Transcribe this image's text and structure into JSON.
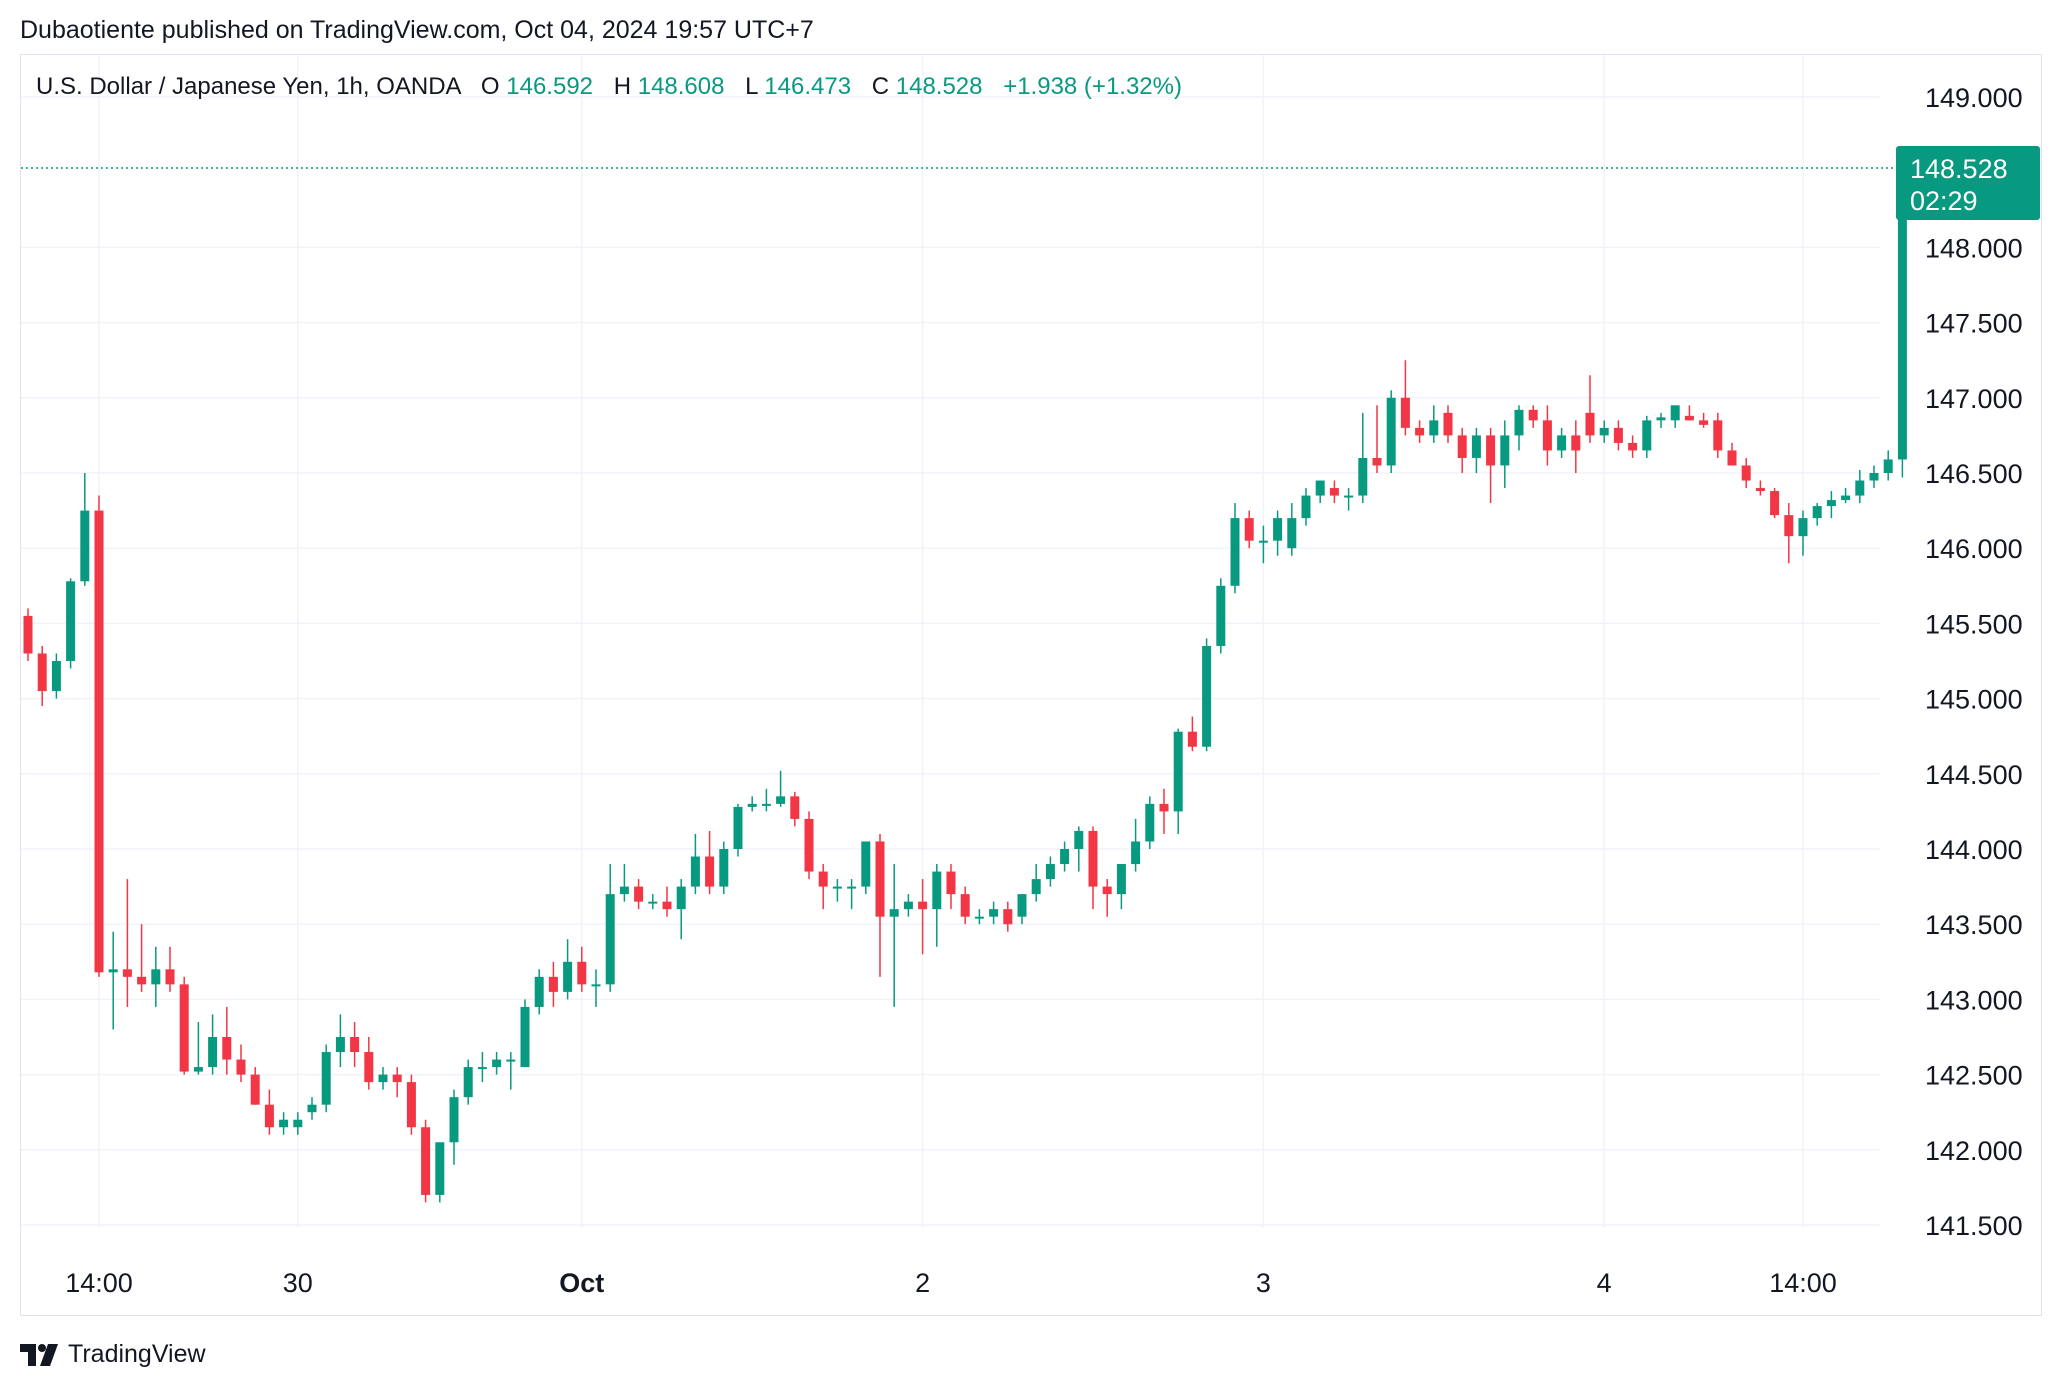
{
  "header": {
    "text": "Dubaotiente published on TradingView.com, Oct 04, 2024 19:57 UTC+7"
  },
  "footer": {
    "brand": "TradingView",
    "logo_icon": "tradingview-logo-icon"
  },
  "colors": {
    "up": "#089981",
    "down": "#f23645",
    "grid": "#f0f3fa",
    "text": "#131722"
  },
  "legend": {
    "symbol": "U.S. Dollar / Japanese Yen, 1h, OANDA",
    "o_label": "O",
    "o_value": "146.592",
    "h_label": "H",
    "h_value": "148.608",
    "l_label": "L",
    "l_value": "146.473",
    "c_label": "C",
    "c_value": "148.528",
    "change": "+1.938 (+1.32%)"
  },
  "last_price": {
    "value": "148.528",
    "countdown": "02:29"
  },
  "chart_data": {
    "type": "candlestick",
    "ylim": [
      141.5,
      149.0
    ],
    "y_ticks": [
      "149.000",
      "148.000",
      "147.500",
      "147.000",
      "146.500",
      "146.000",
      "145.500",
      "145.000",
      "144.500",
      "144.000",
      "143.500",
      "143.000",
      "142.500",
      "142.000",
      "141.500"
    ],
    "x_ticks": [
      {
        "label": "14:00",
        "index": 5,
        "bold": false
      },
      {
        "label": "30",
        "index": 19,
        "bold": false
      },
      {
        "label": "Oct",
        "index": 39,
        "bold": true
      },
      {
        "label": "2",
        "index": 63,
        "bold": false
      },
      {
        "label": "3",
        "index": 87,
        "bold": false
      },
      {
        "label": "4",
        "index": 111,
        "bold": false
      },
      {
        "label": "14:00",
        "index": 125,
        "bold": false
      }
    ],
    "candles": [
      [
        145.55,
        145.6,
        145.25,
        145.3
      ],
      [
        145.3,
        145.35,
        144.95,
        145.05
      ],
      [
        145.05,
        145.3,
        145.0,
        145.25
      ],
      [
        145.25,
        145.8,
        145.2,
        145.78
      ],
      [
        145.78,
        146.5,
        145.75,
        146.25
      ],
      [
        146.25,
        146.35,
        143.15,
        143.18
      ],
      [
        143.18,
        143.45,
        142.8,
        143.2
      ],
      [
        143.2,
        143.8,
        142.95,
        143.15
      ],
      [
        143.15,
        143.5,
        143.05,
        143.1
      ],
      [
        143.1,
        143.35,
        142.95,
        143.2
      ],
      [
        143.2,
        143.35,
        143.05,
        143.1
      ],
      [
        143.1,
        143.15,
        142.5,
        142.52
      ],
      [
        142.52,
        142.85,
        142.5,
        142.55
      ],
      [
        142.55,
        142.9,
        142.5,
        142.75
      ],
      [
        142.75,
        142.95,
        142.5,
        142.6
      ],
      [
        142.6,
        142.7,
        142.45,
        142.5
      ],
      [
        142.5,
        142.55,
        142.3,
        142.3
      ],
      [
        142.3,
        142.4,
        142.1,
        142.15
      ],
      [
        142.15,
        142.25,
        142.1,
        142.2
      ],
      [
        142.15,
        142.25,
        142.1,
        142.2
      ],
      [
        142.25,
        142.35,
        142.2,
        142.3
      ],
      [
        142.3,
        142.7,
        142.25,
        142.65
      ],
      [
        142.65,
        142.9,
        142.55,
        142.75
      ],
      [
        142.75,
        142.85,
        142.55,
        142.65
      ],
      [
        142.65,
        142.75,
        142.4,
        142.45
      ],
      [
        142.45,
        142.55,
        142.4,
        142.5
      ],
      [
        142.5,
        142.55,
        142.35,
        142.45
      ],
      [
        142.45,
        142.5,
        142.1,
        142.15
      ],
      [
        142.15,
        142.2,
        141.65,
        141.7
      ],
      [
        141.7,
        142.05,
        141.65,
        142.05
      ],
      [
        142.05,
        142.4,
        141.9,
        142.35
      ],
      [
        142.35,
        142.6,
        142.3,
        142.55
      ],
      [
        142.55,
        142.65,
        142.45,
        142.55
      ],
      [
        142.55,
        142.65,
        142.5,
        142.6
      ],
      [
        142.6,
        142.65,
        142.4,
        142.6
      ],
      [
        142.55,
        143.0,
        142.55,
        142.95
      ],
      [
        142.95,
        143.2,
        142.9,
        143.15
      ],
      [
        143.15,
        143.25,
        142.95,
        143.05
      ],
      [
        143.05,
        143.4,
        143.0,
        143.25
      ],
      [
        143.25,
        143.35,
        143.05,
        143.1
      ],
      [
        143.1,
        143.2,
        142.95,
        143.1
      ],
      [
        143.1,
        143.9,
        143.05,
        143.7
      ],
      [
        143.7,
        143.9,
        143.65,
        143.75
      ],
      [
        143.75,
        143.8,
        143.6,
        143.65
      ],
      [
        143.65,
        143.7,
        143.6,
        143.65
      ],
      [
        143.65,
        143.75,
        143.55,
        143.6
      ],
      [
        143.6,
        143.8,
        143.4,
        143.75
      ],
      [
        143.75,
        144.1,
        143.7,
        143.95
      ],
      [
        143.95,
        144.12,
        143.7,
        143.75
      ],
      [
        143.75,
        144.05,
        143.7,
        144.0
      ],
      [
        144.0,
        144.3,
        143.95,
        144.28
      ],
      [
        144.28,
        144.35,
        144.25,
        144.3
      ],
      [
        144.3,
        144.4,
        144.25,
        144.3
      ],
      [
        144.3,
        144.52,
        144.28,
        144.35
      ],
      [
        144.35,
        144.38,
        144.15,
        144.2
      ],
      [
        144.2,
        144.25,
        143.8,
        143.85
      ],
      [
        143.85,
        143.9,
        143.6,
        143.75
      ],
      [
        143.75,
        143.8,
        143.65,
        143.75
      ],
      [
        143.75,
        143.8,
        143.6,
        143.75
      ],
      [
        143.75,
        144.05,
        143.7,
        144.05
      ],
      [
        144.05,
        144.1,
        143.15,
        143.55
      ],
      [
        143.55,
        143.9,
        142.95,
        143.6
      ],
      [
        143.6,
        143.7,
        143.55,
        143.65
      ],
      [
        143.65,
        143.8,
        143.3,
        143.6
      ],
      [
        143.6,
        143.9,
        143.35,
        143.85
      ],
      [
        143.85,
        143.9,
        143.6,
        143.7
      ],
      [
        143.7,
        143.75,
        143.5,
        143.55
      ],
      [
        143.55,
        143.6,
        143.5,
        143.55
      ],
      [
        143.55,
        143.65,
        143.5,
        143.6
      ],
      [
        143.6,
        143.65,
        143.45,
        143.5
      ],
      [
        143.55,
        143.7,
        143.5,
        143.7
      ],
      [
        143.7,
        143.9,
        143.65,
        143.8
      ],
      [
        143.8,
        143.95,
        143.75,
        143.9
      ],
      [
        143.9,
        144.05,
        143.85,
        144.0
      ],
      [
        144.0,
        144.15,
        143.85,
        144.12
      ],
      [
        144.12,
        144.15,
        143.6,
        143.75
      ],
      [
        143.75,
        143.8,
        143.55,
        143.7
      ],
      [
        143.7,
        143.9,
        143.6,
        143.9
      ],
      [
        143.9,
        144.2,
        143.85,
        144.05
      ],
      [
        144.05,
        144.35,
        144.0,
        144.3
      ],
      [
        144.3,
        144.4,
        144.1,
        144.25
      ],
      [
        144.25,
        144.8,
        144.1,
        144.78
      ],
      [
        144.78,
        144.88,
        144.65,
        144.68
      ],
      [
        144.68,
        145.4,
        144.65,
        145.35
      ],
      [
        145.35,
        145.8,
        145.3,
        145.75
      ],
      [
        145.75,
        146.3,
        145.7,
        146.2
      ],
      [
        146.2,
        146.25,
        146.0,
        146.05
      ],
      [
        146.05,
        146.15,
        145.9,
        146.05
      ],
      [
        146.05,
        146.25,
        145.95,
        146.2
      ],
      [
        146.0,
        146.3,
        145.95,
        146.2
      ],
      [
        146.2,
        146.4,
        146.15,
        146.35
      ],
      [
        146.35,
        146.45,
        146.3,
        146.45
      ],
      [
        146.4,
        146.45,
        146.3,
        146.35
      ],
      [
        146.35,
        146.4,
        146.25,
        146.35
      ],
      [
        146.35,
        146.9,
        146.3,
        146.6
      ],
      [
        146.6,
        146.95,
        146.5,
        146.55
      ],
      [
        146.55,
        147.05,
        146.5,
        147.0
      ],
      [
        147.0,
        147.25,
        146.75,
        146.8
      ],
      [
        146.8,
        146.85,
        146.7,
        146.75
      ],
      [
        146.75,
        146.95,
        146.7,
        146.85
      ],
      [
        146.9,
        146.95,
        146.7,
        146.75
      ],
      [
        146.75,
        146.8,
        146.5,
        146.6
      ],
      [
        146.6,
        146.8,
        146.5,
        146.75
      ],
      [
        146.75,
        146.8,
        146.3,
        146.55
      ],
      [
        146.55,
        146.85,
        146.4,
        146.75
      ],
      [
        146.75,
        146.95,
        146.65,
        146.92
      ],
      [
        146.92,
        146.95,
        146.8,
        146.85
      ],
      [
        146.85,
        146.95,
        146.55,
        146.65
      ],
      [
        146.65,
        146.8,
        146.6,
        146.75
      ],
      [
        146.75,
        146.85,
        146.5,
        146.65
      ],
      [
        146.9,
        147.15,
        146.7,
        146.75
      ],
      [
        146.75,
        146.85,
        146.7,
        146.8
      ],
      [
        146.8,
        146.85,
        146.65,
        146.7
      ],
      [
        146.7,
        146.75,
        146.6,
        146.65
      ],
      [
        146.65,
        146.88,
        146.6,
        146.85
      ],
      [
        146.85,
        146.9,
        146.8,
        146.87
      ],
      [
        146.85,
        146.95,
        146.8,
        146.95
      ],
      [
        146.88,
        146.95,
        146.85,
        146.85
      ],
      [
        146.85,
        146.9,
        146.8,
        146.82
      ],
      [
        146.85,
        146.9,
        146.6,
        146.65
      ],
      [
        146.65,
        146.7,
        146.55,
        146.55
      ],
      [
        146.55,
        146.6,
        146.4,
        146.45
      ],
      [
        146.4,
        146.45,
        146.35,
        146.38
      ],
      [
        146.38,
        146.4,
        146.2,
        146.22
      ],
      [
        146.22,
        146.3,
        145.9,
        146.08
      ],
      [
        146.08,
        146.25,
        145.95,
        146.2
      ],
      [
        146.2,
        146.3,
        146.15,
        146.28
      ],
      [
        146.28,
        146.38,
        146.2,
        146.32
      ],
      [
        146.32,
        146.4,
        146.3,
        146.35
      ],
      [
        146.35,
        146.52,
        146.3,
        146.45
      ],
      [
        146.45,
        146.55,
        146.4,
        146.5
      ],
      [
        146.5,
        146.65,
        146.45,
        146.59
      ],
      [
        146.59,
        148.61,
        146.47,
        148.53
      ]
    ]
  }
}
